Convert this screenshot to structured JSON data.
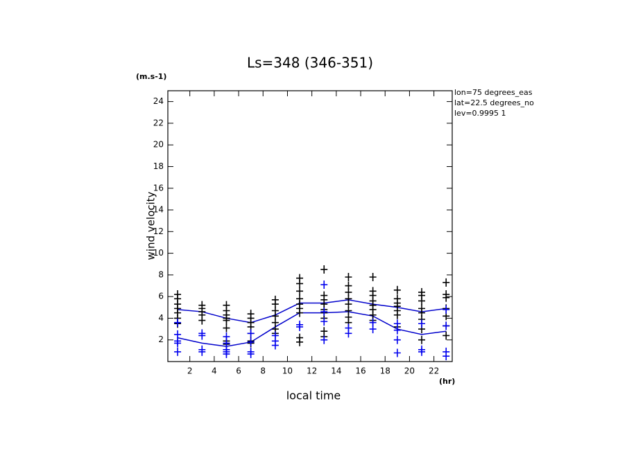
{
  "chart_data": {
    "type": "line",
    "title": "Ls=348 (346-351)",
    "y_unit": "(m.s-1)",
    "x_unit": "(hr)",
    "xlabel": "local time",
    "ylabel": "wind velocity",
    "annotations": [
      "lon=75 degrees_eas",
      "lat=22.5 degrees_no",
      "lev=0.9995 1"
    ],
    "xlim": [
      0.2,
      23.5
    ],
    "ylim": [
      0,
      25
    ],
    "xticks": [
      2,
      4,
      6,
      8,
      10,
      12,
      14,
      16,
      18,
      20,
      22
    ],
    "yticks": [
      2,
      4,
      6,
      8,
      10,
      12,
      14,
      16,
      18,
      20,
      22,
      24
    ],
    "series": [
      {
        "color": "#0000cc",
        "marker": "none",
        "x": [
          1,
          3,
          5,
          7,
          9,
          11,
          13,
          15,
          17,
          19,
          21,
          23
        ],
        "values": [
          4.8,
          4.6,
          4.0,
          3.6,
          4.3,
          5.4,
          5.4,
          5.7,
          5.3,
          5.0,
          4.6,
          4.9
        ]
      },
      {
        "color": "#0000cc",
        "marker": "none",
        "x": [
          1,
          3,
          5,
          7,
          9,
          11,
          13,
          15,
          17,
          19,
          21,
          23
        ],
        "values": [
          2.2,
          1.7,
          1.4,
          1.8,
          3.2,
          4.5,
          4.5,
          4.6,
          4.2,
          3.0,
          2.5,
          2.8
        ]
      },
      {
        "color": "#000000",
        "marker": "+",
        "x": [
          1,
          1,
          1,
          1,
          1,
          1,
          1,
          3,
          3,
          3,
          3,
          3,
          5,
          5,
          5,
          5,
          5,
          5,
          5,
          5,
          7,
          7,
          7,
          7,
          7,
          7,
          7,
          9,
          9,
          9,
          9,
          9,
          9,
          9,
          11,
          11,
          11,
          11,
          11,
          11,
          11,
          11,
          11,
          13,
          13,
          13,
          13,
          13,
          13,
          13,
          13,
          13,
          15,
          15,
          15,
          15,
          15,
          15,
          15,
          15,
          17,
          17,
          17,
          17,
          17,
          17,
          17,
          17,
          19,
          19,
          19,
          19,
          19,
          19,
          19,
          21,
          21,
          21,
          21,
          21,
          21,
          21,
          21,
          23,
          23,
          23,
          23,
          23,
          23,
          23
        ],
        "values": [
          6.2,
          5.8,
          5.3,
          4.9,
          4.5,
          4.0,
          3.5,
          5.2,
          4.9,
          4.6,
          4.3,
          3.8,
          5.2,
          4.7,
          4.3,
          4.0,
          3.8,
          3.1,
          1.9,
          1.6,
          4.4,
          4.0,
          3.6,
          3.2,
          2.6,
          1.9,
          1.7,
          5.7,
          5.3,
          4.7,
          4.2,
          3.6,
          3.0,
          2.6,
          7.7,
          7.2,
          6.5,
          5.8,
          5.3,
          4.9,
          4.5,
          2.2,
          1.8,
          8.5,
          6.1,
          5.7,
          5.3,
          4.8,
          4.5,
          4.0,
          2.8,
          2.3,
          7.8,
          7.0,
          6.4,
          5.8,
          5.3,
          4.7,
          4.1,
          3.6,
          7.8,
          6.5,
          6.1,
          5.6,
          5.2,
          4.8,
          4.3,
          3.8,
          6.6,
          5.8,
          5.4,
          5.1,
          4.7,
          4.3,
          3.2,
          6.4,
          6.1,
          5.6,
          4.9,
          4.5,
          3.9,
          3.0,
          2.0,
          7.3,
          6.2,
          5.9,
          4.9,
          4.2,
          3.3,
          2.4
        ]
      },
      {
        "color": "#0000ee",
        "marker": "+",
        "x": [
          1,
          1,
          1,
          1,
          1,
          3,
          3,
          3,
          3,
          5,
          5,
          5,
          5,
          5,
          7,
          7,
          7,
          7,
          9,
          9,
          9,
          11,
          11,
          13,
          13,
          13,
          13,
          15,
          15,
          17,
          17,
          19,
          19,
          19,
          19,
          21,
          21,
          21,
          23,
          23,
          23,
          23
        ],
        "values": [
          3.6,
          2.5,
          1.9,
          1.7,
          0.9,
          2.6,
          2.4,
          1.1,
          0.9,
          2.3,
          1.7,
          1.1,
          0.9,
          0.7,
          2.6,
          1.8,
          0.9,
          0.7,
          2.4,
          1.9,
          1.5,
          3.4,
          3.2,
          7.1,
          4.6,
          3.7,
          2.0,
          3.1,
          2.6,
          3.6,
          3.0,
          3.5,
          2.9,
          2.0,
          0.8,
          3.5,
          1.1,
          0.9,
          4.8,
          3.3,
          0.9,
          0.5
        ]
      }
    ]
  }
}
